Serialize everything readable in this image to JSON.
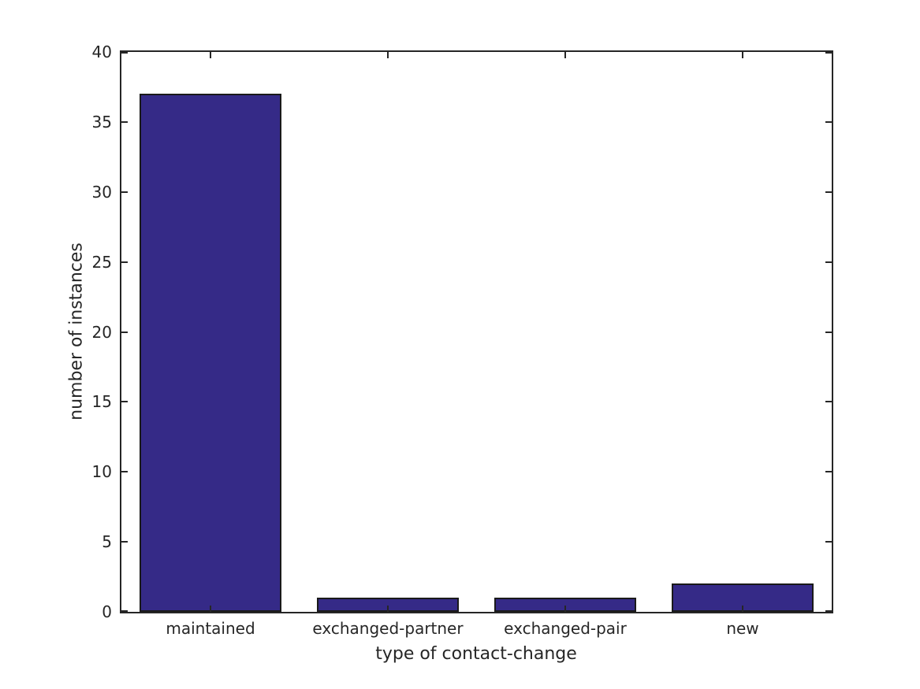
{
  "figure": {
    "background": "#ffffff"
  },
  "chart_data": {
    "type": "bar",
    "categories": [
      "maintained",
      "exchanged-partner",
      "exchanged-pair",
      "new"
    ],
    "values": [
      37,
      1,
      1,
      2
    ],
    "title": "",
    "xlabel": "type of contact-change",
    "ylabel": "number of instances",
    "ylim": [
      0,
      40
    ],
    "yticks": [
      0,
      5,
      10,
      15,
      20,
      25,
      30,
      35,
      40
    ],
    "bar_color": "#352a87",
    "bar_edge_color": "#1a1a1a",
    "axis_color": "#262626",
    "text_color": "#262626",
    "grid": false,
    "legend": null,
    "box": true,
    "tick_direction": "in",
    "bar_width_fraction": 0.8
  }
}
